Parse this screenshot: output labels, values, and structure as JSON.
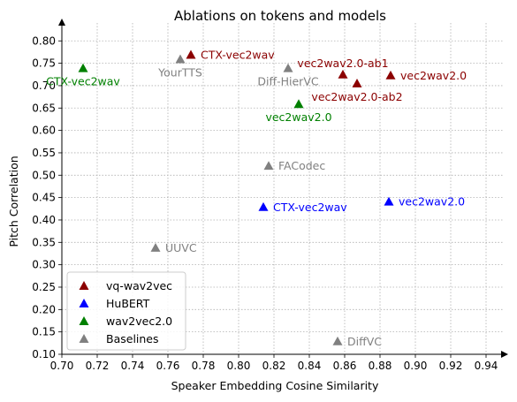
{
  "chart_data": {
    "type": "scatter",
    "title": "Ablations on tokens and models",
    "xlabel": "Speaker Embedding Cosine Similarity",
    "ylabel": "Pitch Correlation",
    "xlim": [
      0.7,
      0.95
    ],
    "ylim": [
      0.1,
      0.84
    ],
    "xticks": [
      "0.70",
      "0.72",
      "0.74",
      "0.76",
      "0.78",
      "0.80",
      "0.82",
      "0.84",
      "0.86",
      "0.88",
      "0.90",
      "0.92",
      "0.94"
    ],
    "yticks": [
      "0.10",
      "0.15",
      "0.20",
      "0.25",
      "0.30",
      "0.35",
      "0.40",
      "0.45",
      "0.50",
      "0.55",
      "0.60",
      "0.65",
      "0.70",
      "0.75",
      "0.80"
    ],
    "grid": true,
    "legend_position": "lower-left",
    "series": [
      {
        "name": "vq-wav2vec",
        "color": "#8b0000",
        "marker": "triangle",
        "points": [
          {
            "x": 0.773,
            "y": 0.768,
            "label": "CTX-vec2wav",
            "label_pos": "right"
          },
          {
            "x": 0.859,
            "y": 0.724,
            "label": "vec2wav2.0-ab1",
            "label_pos": "above"
          },
          {
            "x": 0.867,
            "y": 0.704,
            "label": "vec2wav2.0-ab2",
            "label_pos": "below"
          },
          {
            "x": 0.886,
            "y": 0.722,
            "label": "vec2wav2.0",
            "label_pos": "right"
          }
        ]
      },
      {
        "name": "HuBERT",
        "color": "#0000ff",
        "marker": "triangle",
        "points": [
          {
            "x": 0.814,
            "y": 0.428,
            "label": "CTX-vec2wav",
            "label_pos": "right"
          },
          {
            "x": 0.885,
            "y": 0.44,
            "label": "vec2wav2.0",
            "label_pos": "right"
          }
        ]
      },
      {
        "name": "wav2vec2.0",
        "color": "#008000",
        "marker": "triangle",
        "points": [
          {
            "x": 0.712,
            "y": 0.738,
            "label": "CTX-vec2wav",
            "label_pos": "below"
          },
          {
            "x": 0.834,
            "y": 0.658,
            "label": "vec2wav2.0",
            "label_pos": "below"
          }
        ]
      },
      {
        "name": "Baselines",
        "color": "#808080",
        "marker": "triangle",
        "points": [
          {
            "x": 0.767,
            "y": 0.758,
            "label": "YourTTS",
            "label_pos": "below"
          },
          {
            "x": 0.828,
            "y": 0.738,
            "label": "Diff-HierVC",
            "label_pos": "below"
          },
          {
            "x": 0.817,
            "y": 0.52,
            "label": "FACodec",
            "label_pos": "right"
          },
          {
            "x": 0.753,
            "y": 0.337,
            "label": "UUVC",
            "label_pos": "right"
          },
          {
            "x": 0.856,
            "y": 0.128,
            "label": "DiffVC",
            "label_pos": "right"
          }
        ]
      }
    ]
  }
}
